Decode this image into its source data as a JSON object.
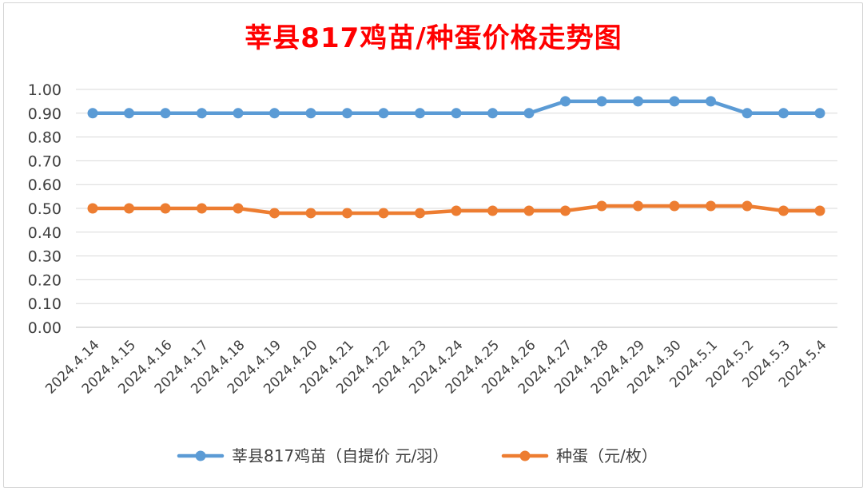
{
  "chart_data": {
    "type": "line",
    "title": "莘县817鸡苗/种蛋价格走势图",
    "xlabel": "",
    "ylabel": "",
    "ylim": [
      0,
      1.0
    ],
    "yticks": [
      "0.00",
      "0.10",
      "0.20",
      "0.30",
      "0.40",
      "0.50",
      "0.60",
      "0.70",
      "0.80",
      "0.90",
      "1.00"
    ],
    "grid": true,
    "legend_position": "bottom",
    "categories": [
      "2024.4.14",
      "2024.4.15",
      "2024.4.16",
      "2024.4.17",
      "2024.4.18",
      "2024.4.19",
      "2024.4.20",
      "2024.4.21",
      "2024.4.22",
      "2024.4.23",
      "2024.4.24",
      "2024.4.25",
      "2024.4.26",
      "2024.4.27",
      "2024.4.28",
      "2024.4.29",
      "2024.4.30",
      "2024.5.1",
      "2024.5.2",
      "2024.5.3",
      "2024.5.4"
    ],
    "series": [
      {
        "name": "莘县817鸡苗（自提价 元/羽）",
        "color": "#5b9bd5",
        "values": [
          0.9,
          0.9,
          0.9,
          0.9,
          0.9,
          0.9,
          0.9,
          0.9,
          0.9,
          0.9,
          0.9,
          0.9,
          0.9,
          0.95,
          0.95,
          0.95,
          0.95,
          0.95,
          0.9,
          0.9,
          0.9
        ]
      },
      {
        "name": "种蛋（元/枚）",
        "color": "#ed7d31",
        "values": [
          0.5,
          0.5,
          0.5,
          0.5,
          0.5,
          0.48,
          0.48,
          0.48,
          0.48,
          0.48,
          0.49,
          0.49,
          0.49,
          0.49,
          0.51,
          0.51,
          0.51,
          0.51,
          0.51,
          0.49,
          0.49
        ]
      }
    ]
  }
}
